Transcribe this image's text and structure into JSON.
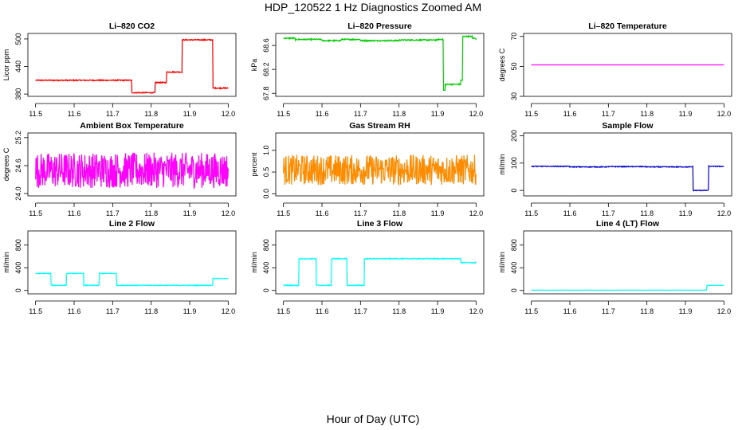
{
  "title": "HDP_120522  1 Hz Diagnostics Zoomed AM",
  "xlabel": "Hour of Day (UTC)",
  "chart_data": [
    {
      "type": "line",
      "title": "Li–820 CO2",
      "ylabel": "Licor ppm",
      "color": "#ff0000",
      "xlim": [
        11.48,
        12.02
      ],
      "ylim": [
        375,
        512
      ],
      "xticks": [
        11.5,
        11.6,
        11.7,
        11.8,
        11.9,
        12.0
      ],
      "xticklabels": [
        "11.5",
        "11.6",
        "11.7",
        "11.8",
        "11.9",
        "12.0"
      ],
      "yticks": [
        380,
        440,
        500
      ],
      "yticklabels": [
        "380",
        "440",
        "500"
      ],
      "steps": [
        [
          11.5,
          410
        ],
        [
          11.75,
          383
        ],
        [
          11.81,
          405
        ],
        [
          11.84,
          428
        ],
        [
          11.88,
          498
        ],
        [
          11.96,
          393
        ],
        [
          12.0,
          393
        ]
      ],
      "noise": 1.2
    },
    {
      "type": "line",
      "title": "Li–820 Pressure",
      "ylabel": "kPa",
      "color": "#00cc00",
      "xlim": [
        11.48,
        12.02
      ],
      "ylim": [
        67.75,
        68.8
      ],
      "xticks": [
        11.5,
        11.6,
        11.7,
        11.8,
        11.9,
        12.0
      ],
      "xticklabels": [
        "11.5",
        "11.6",
        "11.7",
        "11.8",
        "11.9",
        "12.0"
      ],
      "yticks": [
        67.8,
        68.2,
        68.6
      ],
      "yticklabels": [
        "67.8",
        "68.2",
        "68.6"
      ],
      "steps": [
        [
          11.5,
          68.72
        ],
        [
          11.53,
          68.7
        ],
        [
          11.6,
          68.68
        ],
        [
          11.65,
          68.7
        ],
        [
          11.7,
          68.68
        ],
        [
          11.8,
          68.69
        ],
        [
          11.9,
          68.7
        ],
        [
          11.915,
          67.85
        ],
        [
          11.92,
          67.95
        ],
        [
          11.96,
          68.02
        ],
        [
          11.965,
          68.75
        ],
        [
          11.99,
          68.72
        ],
        [
          12.0,
          68.7
        ]
      ],
      "noise": 0.01
    },
    {
      "type": "line",
      "title": "Li–820 Temperature",
      "ylabel": "degrees C",
      "color": "#ff00ff",
      "xlim": [
        11.48,
        12.02
      ],
      "ylim": [
        30,
        72
      ],
      "xticks": [
        11.5,
        11.6,
        11.7,
        11.8,
        11.9,
        12.0
      ],
      "xticklabels": [
        "11.5",
        "11.6",
        "11.7",
        "11.8",
        "11.9",
        "12.0"
      ],
      "yticks": [
        30,
        50,
        70
      ],
      "yticklabels": [
        "30",
        "50",
        "70"
      ],
      "steps": [
        [
          11.5,
          51
        ],
        [
          12.0,
          51
        ]
      ],
      "noise": 0
    },
    {
      "type": "line",
      "title": "Ambient Box Temperature",
      "ylabel": "degrees C",
      "color": "#ff00ff",
      "xlim": [
        11.48,
        12.02
      ],
      "ylim": [
        23.95,
        25.3
      ],
      "xticks": [
        11.5,
        11.6,
        11.7,
        11.8,
        11.9,
        12.0
      ],
      "xticklabels": [
        "11.5",
        "11.6",
        "11.7",
        "11.8",
        "11.9",
        "12.0"
      ],
      "yticks": [
        24.0,
        24.6,
        25.2
      ],
      "yticklabels": [
        "24.0",
        "24.6",
        "25.2"
      ],
      "steps": [
        [
          11.5,
          24.5
        ],
        [
          12.0,
          24.5
        ]
      ],
      "noise": 0.38
    },
    {
      "type": "line",
      "title": "Gas Stream RH",
      "ylabel": "percent",
      "color": "#ff8c00",
      "xlim": [
        11.48,
        12.02
      ],
      "ylim": [
        -0.05,
        1.4
      ],
      "xticks": [
        11.5,
        11.6,
        11.7,
        11.8,
        11.9,
        12.0
      ],
      "xticklabels": [
        "11.5",
        "11.6",
        "11.7",
        "11.8",
        "11.9",
        "12.0"
      ],
      "yticks": [
        0.0,
        0.5,
        1.0
      ],
      "yticklabels": [
        "0.0",
        "0.5",
        "1.0"
      ],
      "steps": [
        [
          11.5,
          0.55
        ],
        [
          12.0,
          0.55
        ]
      ],
      "noise": 0.35
    },
    {
      "type": "line",
      "title": "Sample Flow",
      "ylabel": "ml/min",
      "color": "#0000cc",
      "xlim": [
        11.48,
        12.02
      ],
      "ylim": [
        -20,
        210
      ],
      "xticks": [
        11.5,
        11.6,
        11.7,
        11.8,
        11.9,
        12.0
      ],
      "xticklabels": [
        "11.5",
        "11.6",
        "11.7",
        "11.8",
        "11.9",
        "12.0"
      ],
      "yticks": [
        0,
        100,
        200
      ],
      "yticklabels": [
        "0",
        "100",
        "200"
      ],
      "steps": [
        [
          11.5,
          88
        ],
        [
          11.6,
          86
        ],
        [
          11.7,
          87
        ],
        [
          11.8,
          86
        ],
        [
          11.92,
          0
        ],
        [
          11.96,
          88
        ],
        [
          12.0,
          87
        ]
      ],
      "noise": 1.5
    },
    {
      "type": "line",
      "title": "Line 2 Flow",
      "ylabel": "ml/min",
      "color": "#00ffff",
      "xlim": [
        11.48,
        12.02
      ],
      "ylim": [
        -60,
        1050
      ],
      "xticks": [
        11.5,
        11.6,
        11.7,
        11.8,
        11.9,
        12.0
      ],
      "xticklabels": [
        "11.5",
        "11.6",
        "11.7",
        "11.8",
        "11.9",
        "12.0"
      ],
      "yticks": [
        0,
        400,
        800
      ],
      "yticklabels": [
        "0",
        "400",
        "800"
      ],
      "steps": [
        [
          11.5,
          300
        ],
        [
          11.54,
          90
        ],
        [
          11.58,
          300
        ],
        [
          11.625,
          90
        ],
        [
          11.665,
          300
        ],
        [
          11.71,
          90
        ],
        [
          11.96,
          210
        ],
        [
          12.0,
          210
        ]
      ],
      "noise": 6
    },
    {
      "type": "line",
      "title": "Line 3 Flow",
      "ylabel": "ml/min",
      "color": "#00ffff",
      "xlim": [
        11.48,
        12.02
      ],
      "ylim": [
        -60,
        1050
      ],
      "xticks": [
        11.5,
        11.6,
        11.7,
        11.8,
        11.9,
        12.0
      ],
      "xticklabels": [
        "11.5",
        "11.6",
        "11.7",
        "11.8",
        "11.9",
        "12.0"
      ],
      "yticks": [
        0,
        400,
        800
      ],
      "yticklabels": [
        "0",
        "400",
        "800"
      ],
      "steps": [
        [
          11.5,
          90
        ],
        [
          11.54,
          560
        ],
        [
          11.585,
          90
        ],
        [
          11.625,
          560
        ],
        [
          11.665,
          90
        ],
        [
          11.71,
          560
        ],
        [
          11.96,
          490
        ],
        [
          12.0,
          490
        ]
      ],
      "noise": 8
    },
    {
      "type": "line",
      "title": "Line 4 (LT) Flow",
      "ylabel": "ml/min",
      "color": "#00ffff",
      "xlim": [
        11.48,
        12.02
      ],
      "ylim": [
        -60,
        1050
      ],
      "xticks": [
        11.5,
        11.6,
        11.7,
        11.8,
        11.9,
        12.0
      ],
      "xticklabels": [
        "11.5",
        "11.6",
        "11.7",
        "11.8",
        "11.9",
        "12.0"
      ],
      "yticks": [
        0,
        400,
        800
      ],
      "yticklabels": [
        "0",
        "400",
        "800"
      ],
      "steps": [
        [
          11.5,
          5
        ],
        [
          11.955,
          90
        ],
        [
          12.0,
          90
        ]
      ],
      "noise": 1
    }
  ]
}
